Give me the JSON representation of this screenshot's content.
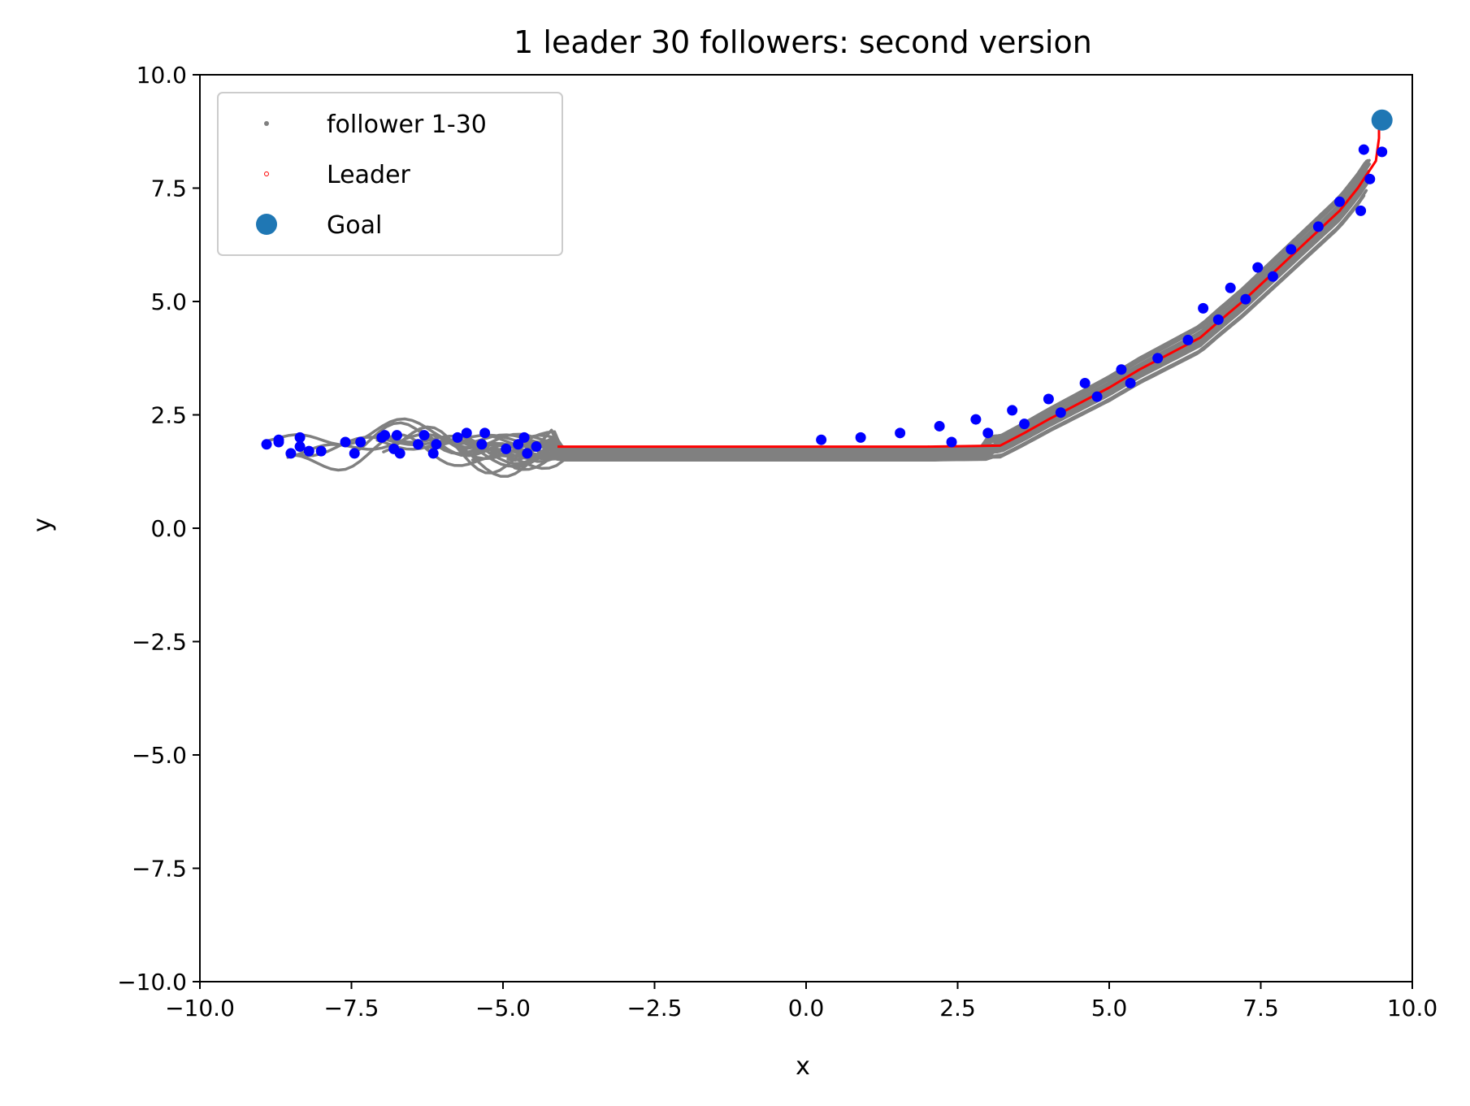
{
  "chart_data": {
    "type": "scatter",
    "title": "1 leader 30 followers: second version",
    "xlabel": "x",
    "ylabel": "y",
    "xlim": [
      -10,
      10
    ],
    "ylim": [
      -10,
      10
    ],
    "xticks": [
      "−10.0",
      "−7.5",
      "−5.0",
      "−2.5",
      "0.0",
      "2.5",
      "5.0",
      "7.5",
      "10.0"
    ],
    "yticks": [
      "−10.0",
      "−7.5",
      "−5.0",
      "−2.5",
      "0.0",
      "2.5",
      "5.0",
      "7.5",
      "10.0"
    ],
    "grid": false,
    "legend_position": "upper-left",
    "colors": {
      "follower": "#808080",
      "leader": "#ff0000",
      "goal": "#1f77b4",
      "follower_position": "#0000ff"
    },
    "series": [
      {
        "name": "follower 1-30",
        "marker": "gray-dot"
      },
      {
        "name": "Leader",
        "marker": "red-ring"
      },
      {
        "name": "Goal",
        "marker": "blue-circle"
      }
    ],
    "goal": {
      "x": 9.5,
      "y": 9.0
    },
    "leader_path": [
      [
        -4.1,
        1.8
      ],
      [
        -2.0,
        1.8
      ],
      [
        0.0,
        1.8
      ],
      [
        2.0,
        1.8
      ],
      [
        3.2,
        1.82
      ],
      [
        3.6,
        2.1
      ],
      [
        4.0,
        2.4
      ],
      [
        4.5,
        2.75
      ],
      [
        5.0,
        3.1
      ],
      [
        5.5,
        3.5
      ],
      [
        6.0,
        3.85
      ],
      [
        6.5,
        4.2
      ],
      [
        6.8,
        4.55
      ],
      [
        7.2,
        5.0
      ],
      [
        7.6,
        5.5
      ],
      [
        8.0,
        6.0
      ],
      [
        8.4,
        6.5
      ],
      [
        8.8,
        7.0
      ],
      [
        9.1,
        7.5
      ],
      [
        9.4,
        8.1
      ],
      [
        9.45,
        8.6
      ],
      [
        9.45,
        8.9
      ]
    ],
    "follower_positions": [
      [
        -8.9,
        1.85
      ],
      [
        -8.7,
        1.9
      ],
      [
        -8.7,
        1.95
      ],
      [
        -8.5,
        1.65
      ],
      [
        -8.35,
        1.8
      ],
      [
        -8.35,
        2.0
      ],
      [
        -8.2,
        1.7
      ],
      [
        -8.0,
        1.7
      ],
      [
        -7.6,
        1.9
      ],
      [
        -7.45,
        1.65
      ],
      [
        -7.35,
        1.9
      ],
      [
        -7.0,
        2.0
      ],
      [
        -6.95,
        2.05
      ],
      [
        -6.8,
        1.75
      ],
      [
        -6.75,
        2.05
      ],
      [
        -6.7,
        1.65
      ],
      [
        -6.4,
        1.85
      ],
      [
        -6.3,
        2.05
      ],
      [
        -6.15,
        1.65
      ],
      [
        -6.1,
        1.85
      ],
      [
        -5.75,
        2.0
      ],
      [
        -5.6,
        2.1
      ],
      [
        -5.35,
        1.85
      ],
      [
        -5.3,
        2.1
      ],
      [
        -4.95,
        1.75
      ],
      [
        -4.75,
        1.85
      ],
      [
        -4.65,
        2.0
      ],
      [
        -4.6,
        1.65
      ],
      [
        -4.45,
        1.8
      ],
      [
        0.25,
        1.95
      ],
      [
        0.9,
        2.0
      ],
      [
        1.55,
        2.1
      ],
      [
        2.2,
        2.25
      ],
      [
        2.4,
        1.9
      ],
      [
        2.8,
        2.4
      ],
      [
        3.0,
        2.1
      ],
      [
        3.4,
        2.6
      ],
      [
        3.6,
        2.3
      ],
      [
        4.0,
        2.85
      ],
      [
        4.2,
        2.55
      ],
      [
        4.6,
        3.2
      ],
      [
        4.8,
        2.9
      ],
      [
        5.2,
        3.5
      ],
      [
        5.35,
        3.2
      ],
      [
        5.8,
        3.75
      ],
      [
        6.3,
        4.15
      ],
      [
        6.55,
        4.85
      ],
      [
        6.8,
        4.6
      ],
      [
        7.0,
        5.3
      ],
      [
        7.25,
        5.05
      ],
      [
        7.45,
        5.75
      ],
      [
        7.7,
        5.55
      ],
      [
        8.0,
        6.15
      ],
      [
        8.45,
        6.65
      ],
      [
        8.8,
        7.2
      ],
      [
        9.15,
        7.0
      ],
      [
        9.2,
        8.35
      ],
      [
        9.3,
        7.7
      ],
      [
        9.5,
        8.3
      ]
    ]
  }
}
